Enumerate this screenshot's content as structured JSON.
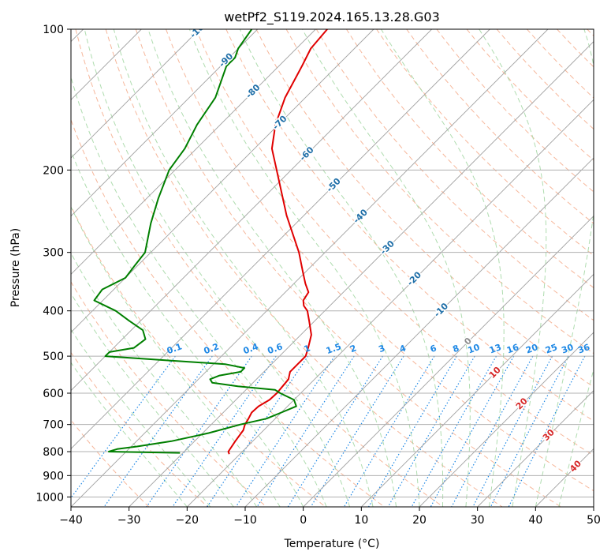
{
  "chart_data": {
    "type": "line",
    "title": "wetPf2_S119.2024.165.13.28.G03",
    "xlabel": "Temperature (°C)",
    "ylabel": "Pressure (hPa)",
    "xlim": [
      -40,
      50
    ],
    "ylim": [
      1050,
      100
    ],
    "y_scale": "log",
    "skew": "skew-T",
    "x_ticks": [
      "−40",
      "−30",
      "−20",
      "−10",
      "0",
      "10",
      "20",
      "30",
      "40",
      "50"
    ],
    "y_ticks": [
      "100",
      "200",
      "300",
      "400",
      "500",
      "600",
      "700",
      "800",
      "900",
      "1000"
    ],
    "grid": true,
    "colors": {
      "temperature": "#e00000",
      "dewpoint": "#007f00",
      "isotherm_grid": "#999999",
      "dry_adiabat": "#f4a582",
      "moist_adiabat": "#a6d8a6",
      "mixing_ratio": "#1e88e5",
      "isotherm_label": "#1f6fa8",
      "isotherm_label_warm": "#d62728",
      "isotherm_label_zero": "#8c8c8c"
    },
    "isotherm_labels": [
      {
        "text": "-100",
        "value": -100
      },
      {
        "text": "-90",
        "value": -90
      },
      {
        "text": "-80",
        "value": -80
      },
      {
        "text": "-70",
        "value": -70
      },
      {
        "text": "-60",
        "value": -60
      },
      {
        "text": "-50",
        "value": -50
      },
      {
        "text": "-40",
        "value": -40
      },
      {
        "text": "-30",
        "value": -30
      },
      {
        "text": "-20",
        "value": -20
      },
      {
        "text": "-10",
        "value": -10
      },
      {
        "text": "0",
        "value": 0
      },
      {
        "text": "10",
        "value": 10
      },
      {
        "text": "20",
        "value": 20
      },
      {
        "text": "30",
        "value": 30
      },
      {
        "text": "40",
        "value": 40
      }
    ],
    "mixing_ratio_labels": [
      "0.1",
      "0.2",
      "0.4",
      "0.6",
      "1",
      "1.5",
      "2",
      "3",
      "4",
      "6",
      "8",
      "10",
      "13",
      "16",
      "20",
      "25",
      "30",
      "36"
    ],
    "mixing_ratio_values": [
      0.1,
      0.2,
      0.4,
      0.6,
      1,
      1.5,
      2,
      3,
      4,
      6,
      8,
      10,
      13,
      16,
      20,
      25,
      30,
      36
    ],
    "series": [
      {
        "name": "Temperature",
        "pressure": [
          100,
          110,
          120,
          140,
          160,
          180,
          200,
          250,
          300,
          330,
          350,
          365,
          380,
          390,
          400,
          420,
          450,
          480,
          500,
          520,
          540,
          560,
          580,
          600,
          620,
          640,
          660,
          680,
          700,
          720,
          760,
          800,
          810
        ],
        "temperature": [
          -78,
          -77.5,
          -76,
          -73.5,
          -70.5,
          -67,
          -62.5,
          -53,
          -44.5,
          -40.5,
          -38,
          -36,
          -35.5,
          -34.5,
          -33,
          -31,
          -28.2,
          -26.5,
          -25.5,
          -25.5,
          -25.5,
          -24.5,
          -24.3,
          -24.1,
          -24.2,
          -25,
          -25.1,
          -24.6,
          -24.2,
          -23.5,
          -23,
          -22.4,
          -21.8
        ]
      },
      {
        "name": "Dewpoint",
        "pressure": [
          100,
          110,
          115,
          120,
          140,
          160,
          180,
          200,
          230,
          260,
          300,
          320,
          340,
          360,
          380,
          400,
          420,
          440,
          460,
          480,
          490,
          500,
          510,
          520,
          530,
          540,
          550,
          560,
          570,
          580,
          590,
          600,
          620,
          640,
          660,
          680,
          700,
          730,
          760,
          780,
          790,
          800,
          805
        ],
        "temperature": [
          -91,
          -90,
          -89,
          -89,
          -85.5,
          -84,
          -82,
          -81,
          -78,
          -75,
          -71,
          -70.5,
          -70,
          -72,
          -71.5,
          -66,
          -62,
          -58,
          -56,
          -56.5,
          -60,
          -60,
          -49,
          -38,
          -34,
          -34,
          -37,
          -38,
          -37,
          -32,
          -25,
          -23.5,
          -20,
          -18.5,
          -20,
          -21.5,
          -25,
          -29,
          -34,
          -39,
          -42,
          -43,
          -30.5
        ]
      }
    ]
  }
}
